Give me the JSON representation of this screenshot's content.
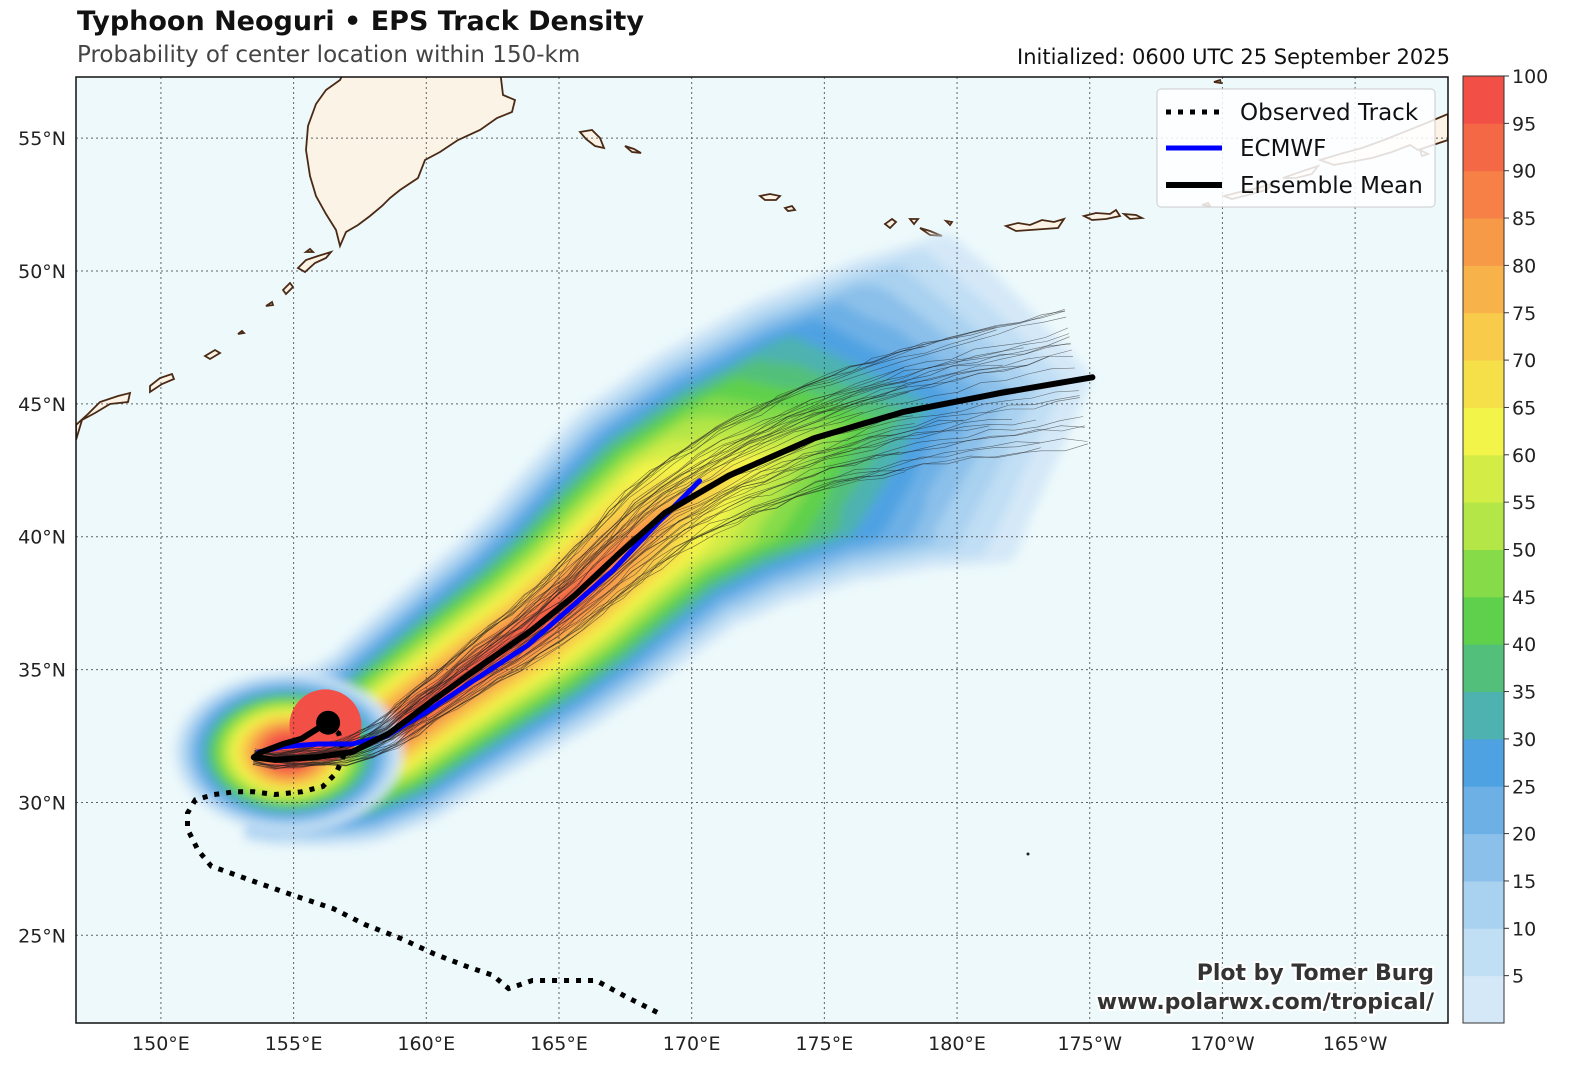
{
  "header": {
    "title": "Typhoon Neoguri • EPS Track Density",
    "subtitle": "Probability of center location within 150-km",
    "initialized": "Initialized: 0600 UTC 25 September 2025"
  },
  "map": {
    "lat_labels": [
      "55°N",
      "50°N",
      "45°N",
      "40°N",
      "35°N",
      "30°N",
      "25°N"
    ],
    "lon_labels": [
      "150°E",
      "155°E",
      "160°E",
      "165°E",
      "170°E",
      "175°E",
      "180°E",
      "175°W",
      "170°W",
      "165°W"
    ],
    "lon_range_east": [
      146.8,
      198.5
    ],
    "lat_range": [
      21.7,
      57.3
    ],
    "colors": {
      "ocean": "#edf9fb",
      "land": "#fbf3e6",
      "coast": "#4a2a14",
      "observed": "#000000",
      "ecmwf": "#0000ff",
      "mean": "#000000"
    }
  },
  "legend": {
    "observed": "Observed Track",
    "ecmwf": "ECMWF",
    "mean": "Ensemble Mean"
  },
  "colorbar": {
    "labels": [
      "100",
      "95",
      "90",
      "85",
      "80",
      "75",
      "70",
      "65",
      "60",
      "55",
      "50",
      "45",
      "40",
      "35",
      "30",
      "25",
      "20",
      "15",
      "10",
      "5"
    ],
    "levels": [
      0,
      5,
      10,
      15,
      20,
      25,
      30,
      35,
      40,
      45,
      50,
      55,
      60,
      65,
      70,
      75,
      80,
      85,
      90,
      95,
      100
    ],
    "colors": [
      "#d4e8f8",
      "#c0def4",
      "#a9d1f0",
      "#8bc0ea",
      "#6db0e6",
      "#4fa2e2",
      "#4db2b0",
      "#52c07a",
      "#5ed04c",
      "#86dc48",
      "#b3e646",
      "#d4ec46",
      "#f3f44a",
      "#f6e04a",
      "#f8cb4a",
      "#f8b24a",
      "#f79a48",
      "#f68046",
      "#f46846",
      "#f25046"
    ]
  },
  "tracks": {
    "observed": [
      [
        168.7,
        22.1
      ],
      [
        167.5,
        22.7
      ],
      [
        166.4,
        23.3
      ],
      [
        165.2,
        23.3
      ],
      [
        164.0,
        23.3
      ],
      [
        163.1,
        23.0
      ],
      [
        162.5,
        23.5
      ],
      [
        161.6,
        23.8
      ],
      [
        160.3,
        24.3
      ],
      [
        159.0,
        24.9
      ],
      [
        157.7,
        25.4
      ],
      [
        156.5,
        26.0
      ],
      [
        155.0,
        26.5
      ],
      [
        153.3,
        27.1
      ],
      [
        151.9,
        27.6
      ],
      [
        151.4,
        28.2
      ],
      [
        151.0,
        29.0
      ],
      [
        151.0,
        29.6
      ],
      [
        151.3,
        30.1
      ],
      [
        152.0,
        30.3
      ],
      [
        152.8,
        30.4
      ],
      [
        153.5,
        30.4
      ],
      [
        154.3,
        30.3
      ],
      [
        155.3,
        30.4
      ],
      [
        156.1,
        30.6
      ],
      [
        156.6,
        31.1
      ],
      [
        156.9,
        31.8
      ],
      [
        156.7,
        32.6
      ],
      [
        156.3,
        32.9
      ]
    ],
    "ecmwf": [
      [
        153.7,
        31.9
      ],
      [
        154.6,
        32.1
      ],
      [
        155.9,
        32.2
      ],
      [
        157.2,
        32.2
      ],
      [
        158.5,
        32.5
      ],
      [
        160.0,
        33.4
      ],
      [
        161.8,
        34.6
      ],
      [
        163.8,
        35.9
      ],
      [
        165.4,
        37.3
      ],
      [
        167.0,
        38.7
      ],
      [
        168.7,
        40.5
      ],
      [
        170.3,
        42.1
      ]
    ],
    "mean": [
      [
        156.1,
        32.9
      ],
      [
        155.3,
        32.4
      ],
      [
        154.6,
        32.2
      ],
      [
        153.8,
        31.9
      ],
      [
        153.5,
        31.7
      ],
      [
        154.3,
        31.6
      ],
      [
        155.8,
        31.7
      ],
      [
        157.2,
        31.9
      ],
      [
        158.6,
        32.6
      ],
      [
        160.2,
        33.8
      ],
      [
        162.0,
        35.1
      ],
      [
        164.0,
        36.5
      ],
      [
        165.6,
        37.8
      ],
      [
        167.2,
        39.3
      ],
      [
        169.0,
        40.9
      ],
      [
        171.4,
        42.3
      ],
      [
        174.6,
        43.7
      ],
      [
        178.0,
        44.7
      ],
      [
        181.6,
        45.4
      ],
      [
        185.1,
        46.0
      ]
    ],
    "start": [
      156.3,
      33.0
    ]
  },
  "credit": {
    "line1": "Plot by Tomer Burg",
    "line2": "www.polarwx.com/tropical/"
  }
}
